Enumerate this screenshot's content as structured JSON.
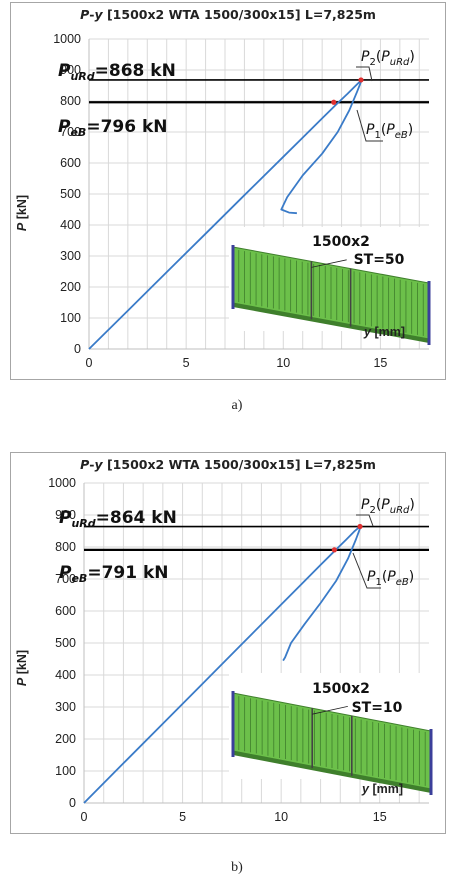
{
  "chart_data": [
    {
      "type": "line",
      "title": "P-y [1500x2 WTA 1500/300x15] L=7,825m",
      "title_parts": {
        "p": "P",
        "dash": "-",
        "y": "y",
        "rest": " [1500x2 WTA 1500/300x15] L=7,825m"
      },
      "xlabel": "y [mm]",
      "ylabel": "P [kN]",
      "xlim": [
        0,
        17.5
      ],
      "ylim": [
        0,
        1000
      ],
      "xticks": [
        "0",
        "5",
        "10",
        "15"
      ],
      "yticks": [
        "0",
        "100",
        "200",
        "300",
        "400",
        "500",
        "600",
        "700",
        "800",
        "900",
        "1000"
      ],
      "grid": true,
      "series": [
        {
          "color": "#3a7bc8",
          "x": [
            0,
            2,
            4,
            6,
            8,
            10,
            11,
            12,
            12.7,
            13.3,
            13.7,
            14.0,
            14.0,
            13.8,
            13.4,
            12.8,
            12.0,
            11.0,
            10.2,
            9.9,
            10.3,
            10.7
          ],
          "y": [
            0,
            124,
            248,
            372,
            496,
            620,
            682,
            744,
            787,
            823,
            848,
            866,
            862,
            830,
            770,
            700,
            630,
            560,
            490,
            450,
            440,
            438
          ]
        }
      ],
      "hlines": [
        {
          "value": 868,
          "color": "#000000"
        },
        {
          "value": 796,
          "color": "#000000"
        }
      ],
      "points": [
        {
          "name": "P2",
          "x": 14.0,
          "y": 868,
          "color": "#e03030"
        },
        {
          "name": "P1",
          "x": 12.6,
          "y": 796,
          "color": "#e03030"
        }
      ],
      "annotations": {
        "urd_sym": "P",
        "urd_sub": "uRd",
        "urd_val": "=868 kN",
        "eb_sym": "P",
        "eb_sub": "eB",
        "eb_val": "=796 kN",
        "p2_sym": "P",
        "p2_idx": "2",
        "p2_arg": "P",
        "p2_argsub": "uRd",
        "p1_sym": "P",
        "p1_idx": "1",
        "p1_arg": "P",
        "p1_argsub": "eB"
      },
      "inset": {
        "label": "1500x2",
        "st": "ST=50"
      }
    },
    {
      "type": "line",
      "title": "P-y [1500x2 WTA 1500/300x15] L=7,825m",
      "title_parts": {
        "p": "P",
        "dash": "-",
        "y": "y",
        "rest": " [1500x2 WTA 1500/300x15] L=7,825m"
      },
      "xlabel": "y [mm]",
      "ylabel": "P [kN]",
      "xlim": [
        0,
        17.5
      ],
      "ylim": [
        0,
        1000
      ],
      "xticks": [
        "0",
        "5",
        "10",
        "15"
      ],
      "yticks": [
        "0",
        "100",
        "200",
        "300",
        "400",
        "500",
        "600",
        "700",
        "800",
        "900",
        "1000"
      ],
      "grid": true,
      "series": [
        {
          "color": "#3a7bc8",
          "x": [
            0,
            2,
            4,
            6,
            8,
            10,
            11,
            12,
            12.7,
            13.3,
            13.7,
            14.0,
            14.0,
            13.8,
            13.4,
            12.8,
            12.0,
            11.2,
            10.5,
            10.2,
            10.1
          ],
          "y": [
            0,
            124,
            248,
            372,
            496,
            620,
            682,
            744,
            787,
            823,
            848,
            864,
            858,
            825,
            765,
            695,
            625,
            560,
            500,
            455,
            445
          ]
        }
      ],
      "hlines": [
        {
          "value": 864,
          "color": "#000000"
        },
        {
          "value": 791,
          "color": "#000000"
        }
      ],
      "points": [
        {
          "name": "P2",
          "x": 14.0,
          "y": 864,
          "color": "#e03030"
        },
        {
          "name": "P1",
          "x": 12.7,
          "y": 791,
          "color": "#e03030"
        }
      ],
      "annotations": {
        "urd_sym": "P",
        "urd_sub": "uRd",
        "urd_val": "=864 kN",
        "eb_sym": "P",
        "eb_sub": "eB",
        "eb_val": "=791 kN",
        "p2_sym": "P",
        "p2_idx": "2",
        "p2_arg": "P",
        "p2_argsub": "uRd",
        "p1_sym": "P",
        "p1_idx": "1",
        "p1_arg": "P",
        "p1_argsub": "eB"
      },
      "inset": {
        "label": "1500x2",
        "st": "ST=10"
      }
    }
  ],
  "captions": [
    "a)",
    "b)"
  ],
  "colors": {
    "grid": "#d9d9d9",
    "curve": "#3a7bc8",
    "marker": "#e03030",
    "beam_top": "#6cc04a",
    "beam_dark": "#3f7f2c",
    "beam_end": "#3b3f9a"
  }
}
